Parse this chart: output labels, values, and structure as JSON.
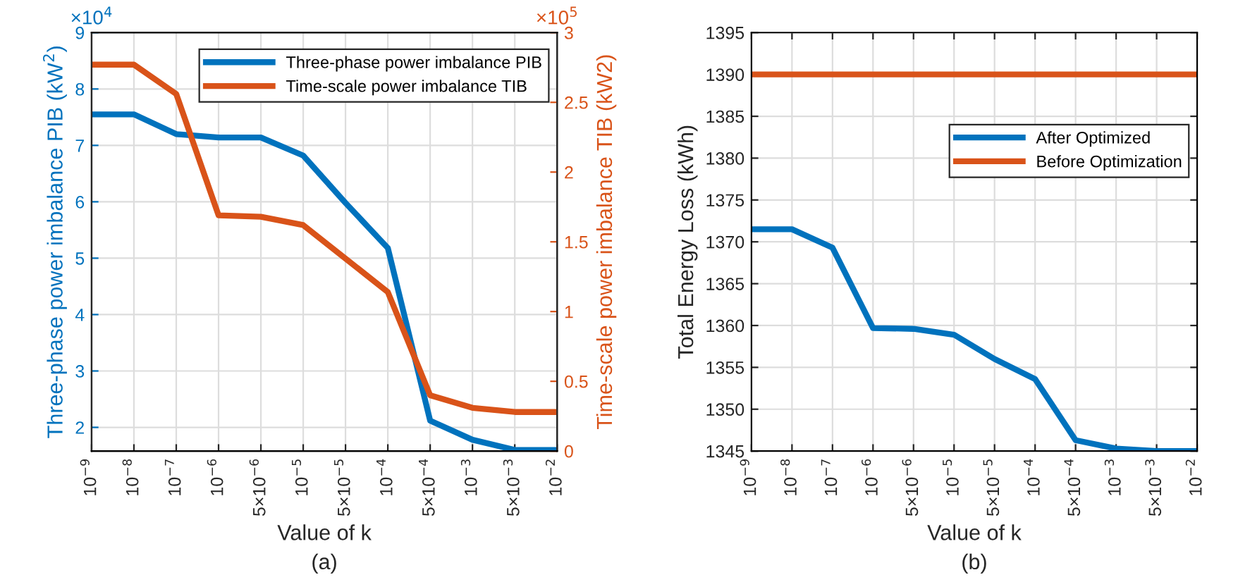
{
  "chart_data": [
    {
      "type": "line",
      "xlabel": "Value of k",
      "ylabel": "Three-phase power imbalance PIB (kW$^{2}$)",
      "y2label": "Time-scale power imbalance TIB (kW2)",
      "categories": [
        "10$^{−9}$",
        "10$^{−8}$",
        "10$^{−7}$",
        "10$^{−6}$",
        "5×10$^{−6}$",
        "10$^{−5}$",
        "5×10$^{−5}$",
        "10$^{−4}$",
        "5×10$^{−4}$",
        "10$^{−3}$",
        "5×10$^{−3}$",
        "10$^{−2}$"
      ],
      "series": [
        {
          "name": "Three-phase power imbalance PIB",
          "color": "#0072bd",
          "values": [
            7.55,
            7.55,
            7.2,
            7.14,
            7.14,
            6.82,
            5.98,
            5.18,
            2.12,
            1.78,
            1.6,
            1.6
          ]
        },
        {
          "name": "Time-scale power imbalance TIB",
          "color": "#d95319",
          "axis": "y2",
          "values": [
            2.77,
            2.77,
            2.56,
            1.69,
            1.68,
            1.62,
            1.38,
            1.14,
            0.4,
            0.31,
            0.28,
            0.28
          ]
        }
      ],
      "ylim": [
        1.58,
        9
      ],
      "yticks": [
        2,
        3,
        4,
        5,
        6,
        7,
        8,
        9
      ],
      "y2lim": [
        0,
        3
      ],
      "y2ticks": [
        0,
        0.5,
        1,
        1.5,
        2,
        2.5,
        3
      ],
      "annotations": [
        "×10$^{4}$",
        "×10$^{5}$",
        "(a)"
      ],
      "grid": true,
      "legend": "top right",
      "line_style": "solid"
    },
    {
      "type": "line",
      "xlabel": "Value of k",
      "ylabel": "Total Energy Loss (kWh)",
      "categories": [
        "10$^{−9}$",
        "10$^{−8}$",
        "10$^{−7}$",
        "10$^{−6}$",
        "5×10$^{−6}$",
        "10$^{−5}$",
        "5×10$^{−5}$",
        "10$^{−4}$",
        "5×10$^{−4}$",
        "10$^{−3}$",
        "5×10$^{−3}$",
        "10$^{−2}$"
      ],
      "series": [
        {
          "name": "After Optimized",
          "color": "#0072bd",
          "values": [
            1371.5,
            1371.5,
            1369.3,
            1359.7,
            1359.6,
            1358.9,
            1356.0,
            1353.6,
            1346.3,
            1345.3,
            1345.0,
            1345.0
          ]
        },
        {
          "name": "Before Optimization",
          "color": "#d95319",
          "values": [
            1390,
            1390,
            1390,
            1390,
            1390,
            1390,
            1390,
            1390,
            1390,
            1390,
            1390,
            1390
          ]
        }
      ],
      "ylim": [
        1345,
        1395
      ],
      "yticks": [
        1345,
        1350,
        1355,
        1360,
        1365,
        1370,
        1375,
        1380,
        1385,
        1390,
        1395
      ],
      "annotations": [
        "(b)"
      ],
      "grid": true,
      "legend": "right",
      "line_style": "solid"
    }
  ]
}
